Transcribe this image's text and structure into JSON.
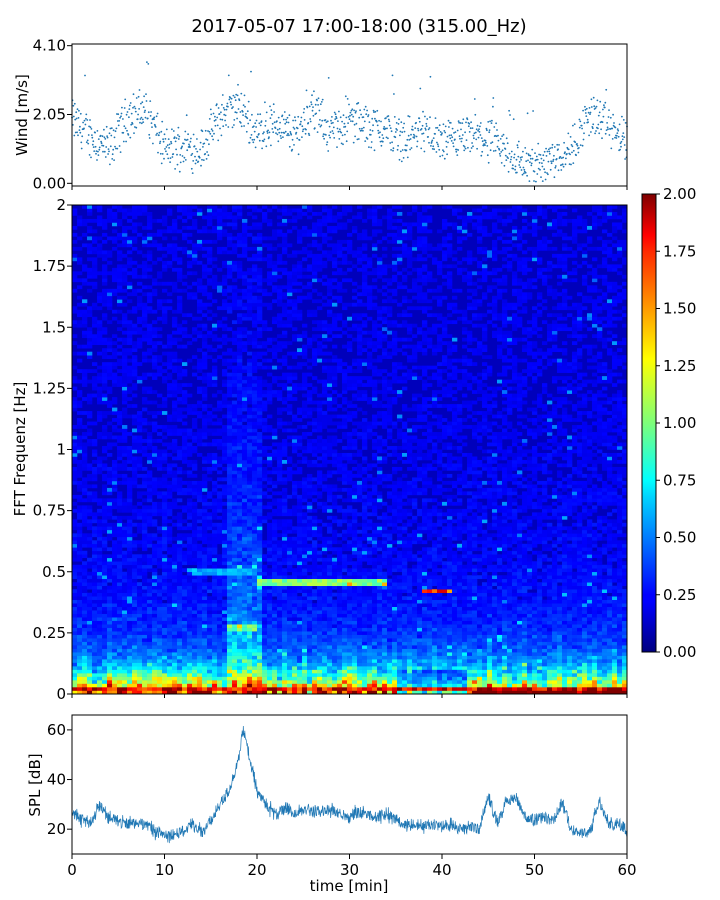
{
  "title": "2017-05-07 17:00-18:00 (315.00_Hz)",
  "chart_data": [
    {
      "type": "scatter",
      "panel": "wind",
      "ylabel": "Wind [m/s]",
      "xlabel": "",
      "xlim": [
        0,
        60
      ],
      "ylim": [
        -0.08,
        4.15
      ],
      "yticks": [
        0.0,
        2.05,
        4.1
      ],
      "ytick_labels": [
        "0.00",
        "2.05",
        "4.10"
      ],
      "color": "#1f77b4",
      "point_interval_min": 0.05,
      "series": [
        {
          "x": [
            0,
            2,
            4,
            6,
            8,
            10,
            12,
            14,
            16,
            18,
            20,
            22,
            24,
            26,
            28,
            30,
            32,
            34,
            36,
            38,
            40,
            42,
            44,
            46,
            48,
            50,
            52,
            54,
            56,
            58,
            60
          ],
          "y": [
            1.9,
            1.4,
            1.0,
            2.0,
            2.2,
            1.0,
            1.1,
            1.0,
            2.0,
            2.3,
            1.5,
            1.8,
            1.4,
            2.2,
            1.5,
            1.9,
            1.7,
            1.6,
            1.3,
            1.6,
            1.2,
            1.3,
            1.4,
            1.1,
            0.7,
            0.5,
            0.8,
            1.0,
            2.1,
            1.7,
            1.2
          ]
        }
      ]
    },
    {
      "type": "heatmap",
      "panel": "spectrogram",
      "ylabel": "FFT Frequenz [Hz]",
      "xlabel": "",
      "xlim": [
        0,
        60
      ],
      "ylim": [
        0,
        2
      ],
      "yticks": [
        0,
        0.25,
        0.5,
        0.75,
        1,
        1.25,
        1.5,
        1.75,
        2
      ],
      "ytick_labels": [
        "0",
        "0.25",
        "0.5",
        "0.75",
        "1",
        "1.25",
        "1.5",
        "1.75",
        "2"
      ],
      "colormap": "jet",
      "colorbar": {
        "range": [
          0,
          2
        ],
        "ticks": [
          0,
          0.25,
          0.5,
          0.75,
          1,
          1.25,
          1.5,
          1.75,
          2
        ],
        "tick_labels": [
          "0.00",
          "0.25",
          "0.50",
          "0.75",
          "1.00",
          "1.25",
          "1.50",
          "1.75",
          "2.00"
        ]
      },
      "features": [
        {
          "freq": 0.46,
          "x_range": [
            20,
            34
          ],
          "value": 1.0
        },
        {
          "freq": 0.42,
          "x_range": [
            38,
            41
          ],
          "value": 1.6
        },
        {
          "freq": 0.5,
          "x_range": [
            13,
            20
          ],
          "value": 0.6
        },
        {
          "freq": 0.27,
          "x_range": [
            17,
            20
          ],
          "value": 1.0
        },
        {
          "freq": 0.02,
          "x_range": [
            0,
            60
          ],
          "value": 1.8
        }
      ]
    },
    {
      "type": "line",
      "panel": "spl",
      "ylabel": "SPL [dB]",
      "xlabel": "time [min]",
      "xlim": [
        0,
        60
      ],
      "ylim": [
        10,
        66
      ],
      "yticks": [
        20,
        40,
        60
      ],
      "ytick_labels": [
        "20",
        "40",
        "60"
      ],
      "xticks": [
        0,
        10,
        20,
        30,
        40,
        50,
        60
      ],
      "xtick_labels": [
        "0",
        "10",
        "20",
        "30",
        "40",
        "50",
        "60"
      ],
      "color": "#1f77b4",
      "series": [
        {
          "x": [
            0,
            1,
            2,
            3,
            4,
            5,
            6,
            7,
            8,
            9,
            10,
            11,
            12,
            13,
            14,
            15,
            16,
            17,
            18,
            18.5,
            19,
            20,
            21,
            22,
            23,
            24,
            25,
            26,
            27,
            28,
            29,
            30,
            31,
            32,
            33,
            34,
            35,
            36,
            37,
            38,
            39,
            40,
            41,
            42,
            43,
            44,
            45,
            46,
            47,
            48,
            49,
            50,
            51,
            52,
            53,
            54,
            55,
            56,
            57,
            58,
            59,
            60
          ],
          "y": [
            27,
            24,
            22,
            30,
            25,
            23,
            22,
            23,
            22,
            19,
            18,
            18,
            19,
            22,
            19,
            23,
            30,
            36,
            48,
            60,
            52,
            35,
            30,
            26,
            28,
            26,
            29,
            27,
            27,
            28,
            26,
            25,
            27,
            26,
            25,
            26,
            24,
            22,
            22,
            21,
            22,
            21,
            22,
            20,
            21,
            20,
            33,
            23,
            31,
            33,
            25,
            23,
            25,
            23,
            31,
            20,
            18,
            19,
            31,
            22,
            22,
            20
          ]
        }
      ]
    }
  ]
}
